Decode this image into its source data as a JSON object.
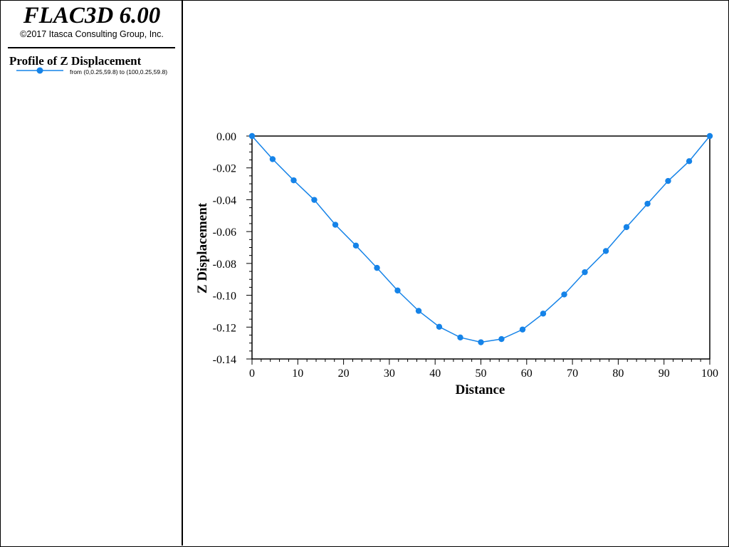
{
  "app": {
    "title": "FLAC3D 6.00",
    "copyright": "©2017 Itasca Consulting Group, Inc."
  },
  "legend": {
    "title": "Profile of Z Displacement",
    "entries": [
      {
        "label": "from (0,0.25,59.8) to (100,0.25,59.8)",
        "color": "#1583e8",
        "marker": "circle"
      }
    ]
  },
  "chart_data": {
    "type": "line",
    "title": "",
    "xlabel": "Distance",
    "ylabel": "Z Displacement",
    "xlim": [
      0,
      100
    ],
    "ylim": [
      -0.14,
      0.0
    ],
    "xticks": [
      0,
      10,
      20,
      30,
      40,
      50,
      60,
      70,
      80,
      90,
      100
    ],
    "xtick_labels": [
      "0",
      "10",
      "20",
      "30",
      "40",
      "50",
      "60",
      "70",
      "80",
      "90",
      "100"
    ],
    "yticks": [
      0.0,
      -0.02,
      -0.04,
      -0.06,
      -0.08,
      -0.1,
      -0.12,
      -0.14
    ],
    "ytick_labels": [
      "0.00",
      "-0.02",
      "-0.04",
      "-0.06",
      "-0.08",
      "-0.10",
      "-0.12",
      "-0.14"
    ],
    "grid": false,
    "legend_position": "left-panel",
    "series": [
      {
        "color": "#1583e8",
        "marker": "circle",
        "x": [
          0,
          4.5,
          9.1,
          13.6,
          18.2,
          22.7,
          27.3,
          31.8,
          36.4,
          40.9,
          45.5,
          50.0,
          54.5,
          59.1,
          63.6,
          68.2,
          72.7,
          77.3,
          81.8,
          86.4,
          90.9,
          95.5,
          100
        ],
        "y": [
          0.0,
          -0.0145,
          -0.0278,
          -0.0401,
          -0.0557,
          -0.0688,
          -0.0828,
          -0.097,
          -0.1098,
          -0.1198,
          -0.1265,
          -0.1295,
          -0.1275,
          -0.1215,
          -0.1115,
          -0.0995,
          -0.0855,
          -0.0722,
          -0.0572,
          -0.0425,
          -0.0282,
          -0.0158,
          0.0
        ]
      }
    ]
  }
}
